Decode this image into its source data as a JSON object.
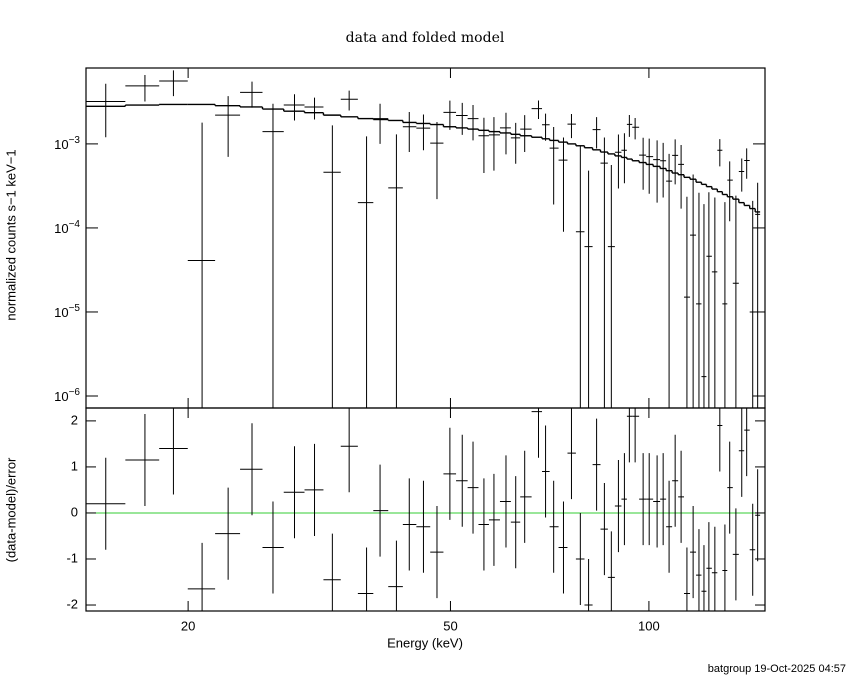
{
  "chart_data": [
    {
      "type": "errorbar",
      "title": "data and folded model",
      "ylabel": "normalized counts s−1 keV−1",
      "footnote": "batgroup 19-Oct-2025 04:57",
      "log_x": true,
      "log_y": true,
      "color": "#000000",
      "x": [
        15.0,
        17.2,
        19.0,
        21.0,
        23.0,
        25.0,
        26.9,
        29.0,
        31.1,
        33.1,
        35.1,
        37.3,
        39.1,
        41.4,
        43.3,
        45.5,
        47.7,
        49.9,
        52.1,
        54.1,
        56.2,
        58.2,
        60.7,
        62.8,
        64.8,
        68.0,
        69.7,
        71.7,
        74.2,
        76.3,
        78.7,
        81.0,
        83.3,
        85.6,
        87.7,
        89.9,
        91.8,
        93.4,
        95.3,
        98.0,
        100.1,
        102.9,
        105.1,
        107.3,
        109.6,
        111.9,
        114.2,
        116.7,
        119.1,
        121.2,
        123.3,
        125.9,
        128.1,
        130.4,
        132.6,
        135.5,
        138.3,
        140.7,
        143.7,
        146.2
      ],
      "values": [
        0.0032,
        0.0049,
        0.0056,
        4.1e-05,
        0.0022,
        0.0041,
        0.0014,
        0.0029,
        0.00275,
        0.00046,
        0.0034,
        0.0002,
        0.002,
        0.0003,
        0.0016,
        0.00154,
        0.00102,
        0.00237,
        0.00218,
        0.002,
        0.00125,
        0.00128,
        0.00155,
        0.00118,
        0.0015,
        0.00263,
        0.00169,
        0.00089,
        0.00064,
        0.00172,
        9e-05,
        6e-05,
        0.00148,
        0.00059,
        6e-05,
        0.000795,
        0.00084,
        0.00171,
        0.00158,
        0.000735,
        0.000705,
        0.00065,
        0.00063,
        0.00036,
        0.00073,
        0.00057,
        1.5e-05,
        8.2e-05,
        1.25e-05,
        1.7e-06,
        4.6e-05,
        3e-05,
        0.00084,
        1.25e-05,
        0.00037,
        2.2e-05,
        0.00047,
        0.000635,
        1e-05,
        0.000145
      ],
      "errors": [
        0.002,
        0.0017,
        0.0019,
        0.00175,
        0.0015,
        0.0014,
        0.0016,
        0.001,
        0.0008,
        0.0012,
        0.0009,
        0.00103,
        0.001,
        0.001,
        0.0008,
        0.0007,
        0.0008,
        0.0009,
        0.0009,
        0.0009,
        0.0008,
        0.0008,
        0.0008,
        0.0006,
        0.0007,
        0.00065,
        0.0006,
        0.0007,
        0.00055,
        0.00055,
        0.00086,
        0.00042,
        0.0006,
        0.0006,
        0.0005,
        0.0005,
        0.0005,
        0.0005,
        0.00045,
        0.00045,
        0.00045,
        0.00045,
        0.0004,
        0.0004,
        0.0004,
        0.0004,
        0.00022,
        0.00035,
        0.00025,
        0.00019,
        0.00022,
        0.0002,
        0.0003,
        0.00019,
        0.00025,
        0.00022,
        0.0002,
        0.00025,
        0.0002,
        0.0002
      ],
      "model": [
        0.0028,
        0.0029,
        0.00295,
        0.00295,
        0.00285,
        0.00275,
        0.0026,
        0.00245,
        0.00235,
        0.0022,
        0.0021,
        0.002,
        0.00195,
        0.0019,
        0.0018,
        0.00175,
        0.0017,
        0.0016,
        0.00155,
        0.0015,
        0.00145,
        0.0014,
        0.00135,
        0.0013,
        0.00125,
        0.0012,
        0.00115,
        0.0011,
        0.00105,
        0.001,
        0.00095,
        0.0009,
        0.00085,
        0.0008,
        0.00076,
        0.00072,
        0.00069,
        0.00066,
        0.00063,
        0.0006,
        0.00057,
        0.00054,
        0.00051,
        0.00048,
        0.00045,
        0.00043,
        0.0004,
        0.00038,
        0.00035,
        0.00033,
        0.00031,
        0.00029,
        0.00027,
        0.00025,
        0.000235,
        0.00022,
        0.0002,
        0.000185,
        0.00017,
        0.000155
      ],
      "xlim": [
        14,
        150
      ],
      "xticks": [
        20,
        50,
        100
      ],
      "ylim": [
        7.2e-07,
        0.008
      ],
      "yticks": [
        {
          "value": 1e-06,
          "label": "10−6"
        },
        {
          "value": 1e-05,
          "label": "10−5"
        },
        {
          "value": 0.0001,
          "label": "10−4"
        },
        {
          "value": 0.001,
          "label": "10−3"
        }
      ]
    },
    {
      "type": "residual",
      "xlabel": "Energy (keV)",
      "ylabel": "(data-model)/error",
      "color": "#000000",
      "hline": 0,
      "hline_color": "#33cc33",
      "values": [
        0.2,
        1.15,
        1.4,
        -1.65,
        -0.45,
        0.95,
        -0.75,
        0.45,
        0.5,
        -1.45,
        1.45,
        -1.75,
        0.05,
        -1.6,
        -0.25,
        -0.3,
        -0.85,
        0.85,
        0.7,
        0.55,
        -0.25,
        -0.15,
        0.25,
        -0.2,
        0.35,
        2.2,
        0.9,
        -0.3,
        -0.75,
        1.3,
        -1.0,
        -2.0,
        1.05,
        -0.35,
        -1.4,
        0.15,
        0.3,
        2.1,
        2.1,
        0.3,
        0.3,
        0.25,
        0.3,
        -0.3,
        0.7,
        0.35,
        -1.75,
        -0.85,
        -1.35,
        -1.7,
        -1.2,
        -1.3,
        1.9,
        -1.25,
        0.55,
        -0.9,
        1.35,
        1.8,
        -0.8,
        -0.05
      ],
      "errors": [
        1,
        1,
        1,
        1,
        1,
        1,
        1,
        1,
        1,
        1,
        1,
        1,
        1,
        1,
        1,
        1,
        1,
        1,
        1,
        1,
        1,
        1,
        1,
        1,
        1,
        1,
        1,
        1,
        1,
        1,
        1,
        1,
        1,
        1,
        1,
        1,
        1,
        1,
        1,
        1,
        1,
        1,
        1,
        1,
        1,
        1,
        1,
        1,
        1,
        1,
        1,
        1,
        1,
        1,
        1,
        1,
        1,
        1,
        1,
        1
      ],
      "ylim": [
        -2.13,
        2.28
      ],
      "yticks": [
        -2,
        -1,
        0,
        1,
        2
      ]
    }
  ]
}
